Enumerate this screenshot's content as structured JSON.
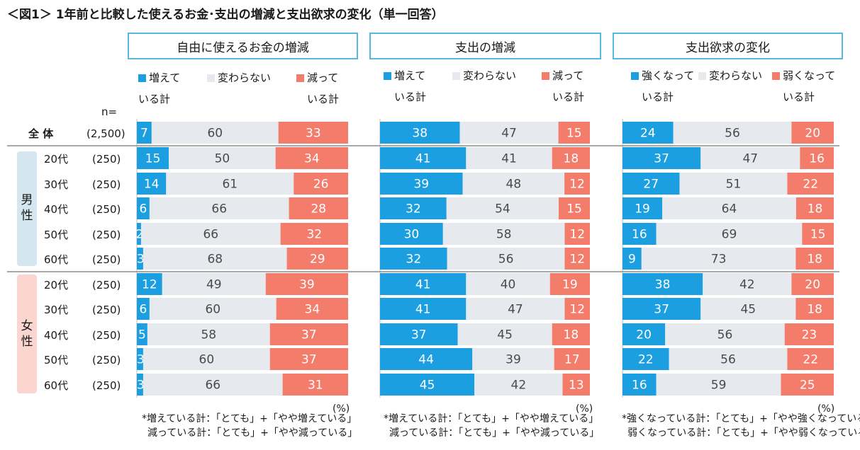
{
  "title": "＜図1＞ 1年前と比較した使えるお金･支出の増減と支出欲求の変化（単一回答）",
  "colors": {
    "up": "#1c9fe0",
    "same": "#e6e9ee",
    "down": "#f47c6b",
    "header_border": "#5bb7e0",
    "male_group": "#d5e6f0",
    "female_group": "#fbd5cf"
  },
  "n_label": "n=",
  "rows": [
    {
      "label": "全 体",
      "n": "(2,500)"
    },
    {
      "label": "20代",
      "n": "(250)"
    },
    {
      "label": "30代",
      "n": "(250)"
    },
    {
      "label": "40代",
      "n": "(250)"
    },
    {
      "label": "50代",
      "n": "(250)"
    },
    {
      "label": "60代",
      "n": "(250)"
    },
    {
      "label": "20代",
      "n": "(250)"
    },
    {
      "label": "30代",
      "n": "(250)"
    },
    {
      "label": "40代",
      "n": "(250)"
    },
    {
      "label": "50代",
      "n": "(250)"
    },
    {
      "label": "60代",
      "n": "(250)"
    }
  ],
  "groups": {
    "male": "男性",
    "female": "女性"
  },
  "chart_data": [
    {
      "type": "bar",
      "stacked": true,
      "orientation": "horizontal",
      "title": "自由に使えるお金の増減",
      "unit": "(%)",
      "legend": [
        "増えている計",
        "変わらない",
        "減っている計"
      ],
      "series": [
        {
          "name": "増えている計",
          "values": [
            7,
            15,
            14,
            6,
            2,
            3,
            12,
            6,
            5,
            3,
            3
          ]
        },
        {
          "name": "変わらない",
          "values": [
            60,
            50,
            61,
            66,
            66,
            68,
            49,
            60,
            58,
            60,
            66
          ]
        },
        {
          "name": "減っている計",
          "values": [
            33,
            34,
            26,
            28,
            32,
            29,
            39,
            34,
            37,
            37,
            31
          ]
        }
      ],
      "notes": [
        "*増えている計：「とても」+「やや増えている」",
        "減っている計：「とても」+「やや減っている」"
      ]
    },
    {
      "type": "bar",
      "stacked": true,
      "orientation": "horizontal",
      "title": "支出の増減",
      "unit": "(%)",
      "legend": [
        "増えている計",
        "変わらない",
        "減っている計"
      ],
      "series": [
        {
          "name": "増えている計",
          "values": [
            38,
            41,
            39,
            32,
            30,
            32,
            41,
            41,
            37,
            44,
            45
          ]
        },
        {
          "name": "変わらない",
          "values": [
            47,
            41,
            48,
            54,
            58,
            56,
            40,
            47,
            45,
            39,
            42
          ]
        },
        {
          "name": "減っている計",
          "values": [
            15,
            18,
            12,
            15,
            12,
            12,
            19,
            12,
            18,
            17,
            13
          ]
        }
      ],
      "notes": [
        "*増えている計：「とても」+「やや増えている」",
        "減っている計：「とても」+「やや減っている」"
      ]
    },
    {
      "type": "bar",
      "stacked": true,
      "orientation": "horizontal",
      "title": "支出欲求の変化",
      "unit": "(%)",
      "legend": [
        "強くなっている計",
        "変わらない",
        "弱くなっている計"
      ],
      "series": [
        {
          "name": "強くなっている計",
          "values": [
            24,
            37,
            27,
            19,
            16,
            9,
            38,
            37,
            20,
            22,
            16
          ]
        },
        {
          "name": "変わらない",
          "values": [
            56,
            47,
            51,
            64,
            69,
            73,
            42,
            45,
            56,
            56,
            59
          ]
        },
        {
          "name": "弱くなっている計",
          "values": [
            20,
            16,
            22,
            18,
            15,
            18,
            20,
            18,
            23,
            22,
            25
          ]
        }
      ],
      "notes": [
        "*強くなっている計：「とても」+「やや強くなっている」",
        "弱くなっている計：「とても」+「やや弱くなっている」"
      ]
    }
  ]
}
